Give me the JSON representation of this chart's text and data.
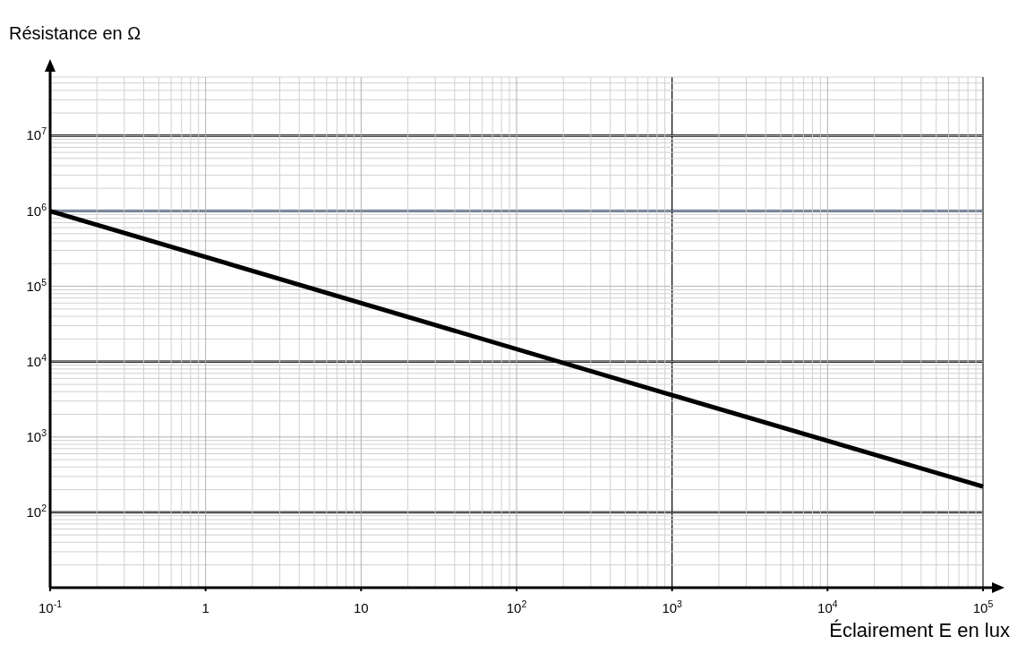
{
  "chart_data": {
    "type": "line",
    "ylabel": "Résistance en Ω",
    "xlabel": "Éclairement E en lux",
    "log": "xy",
    "grid": true,
    "marker": "none",
    "line_style": "solid",
    "xlim": [
      0.1,
      100000
    ],
    "ylim": [
      10,
      60000000
    ],
    "xticks": [
      {
        "value": 0.1,
        "label": "10$^{-1}$"
      },
      1,
      10,
      {
        "value": 100,
        "label": "10$^{2}$"
      },
      {
        "value": 1000,
        "label": "10$^{3}$"
      },
      {
        "value": 10000,
        "label": "10$^{4}$"
      },
      {
        "value": 100000,
        "label": "10$^{5}$"
      }
    ],
    "yticks": [
      {
        "value": 100,
        "label": "10$^{2}$"
      },
      {
        "value": 1000,
        "label": "10$^{3}$"
      },
      {
        "value": 10000,
        "label": "10$^{4}$"
      },
      {
        "value": 100000,
        "label": "10$^{5}$"
      },
      {
        "value": 1000000,
        "label": "10$^{6}$"
      },
      {
        "value": 10000000,
        "label": "10$^{7}$"
      }
    ],
    "ref_lines": [
      {
        "axis": "y",
        "value": 10000000,
        "color": "#000000"
      },
      {
        "axis": "y",
        "value": 1000000,
        "color": "#1f3864"
      },
      {
        "axis": "y",
        "value": 10000,
        "color": "#000000"
      },
      {
        "axis": "y",
        "value": 100,
        "color": "#000000"
      },
      {
        "axis": "x",
        "value": 1000,
        "color": "#000000"
      }
    ],
    "series": [
      {
        "color": "#000000",
        "x": [
          0.1,
          1000,
          100000
        ],
        "values": [
          1000000,
          3600,
          220
        ]
      }
    ]
  }
}
